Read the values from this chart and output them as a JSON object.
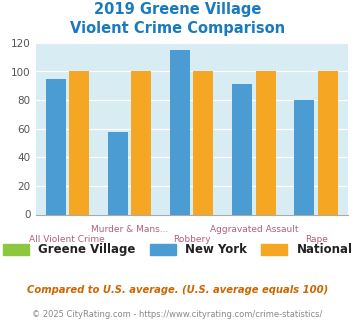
{
  "title_line1": "2019 Greene Village",
  "title_line2": "Violent Crime Comparison",
  "title_color": "#1a7abf",
  "categories": [
    "All Violent Crime",
    "Murder & Mans...",
    "Robbery",
    "Aggravated Assault",
    "Rape"
  ],
  "greene_village": [
    null,
    null,
    null,
    null,
    null
  ],
  "new_york": [
    95,
    58,
    115,
    91,
    80
  ],
  "national": [
    100,
    100,
    100,
    100,
    100
  ],
  "bar_color_gv": "#8dc63f",
  "bar_color_ny": "#4b9cd3",
  "bar_color_nat": "#f5a623",
  "ylim": [
    0,
    120
  ],
  "yticks": [
    0,
    20,
    40,
    60,
    80,
    100,
    120
  ],
  "bg_color": "#d8ecf3",
  "legend_labels": [
    "Greene Village",
    "New York",
    "National"
  ],
  "footnote1": "Compared to U.S. average. (U.S. average equals 100)",
  "footnote2": "© 2025 CityRating.com - https://www.cityrating.com/crime-statistics/",
  "footnote1_color": "#cc6600",
  "footnote2_color": "#888888",
  "xlabel_top_row": [
    "",
    "Murder & Mans...",
    "",
    "Aggravated Assault",
    ""
  ],
  "xlabel_bot_row": [
    "All Violent Crime",
    "",
    "Robbery",
    "",
    "Rape"
  ]
}
